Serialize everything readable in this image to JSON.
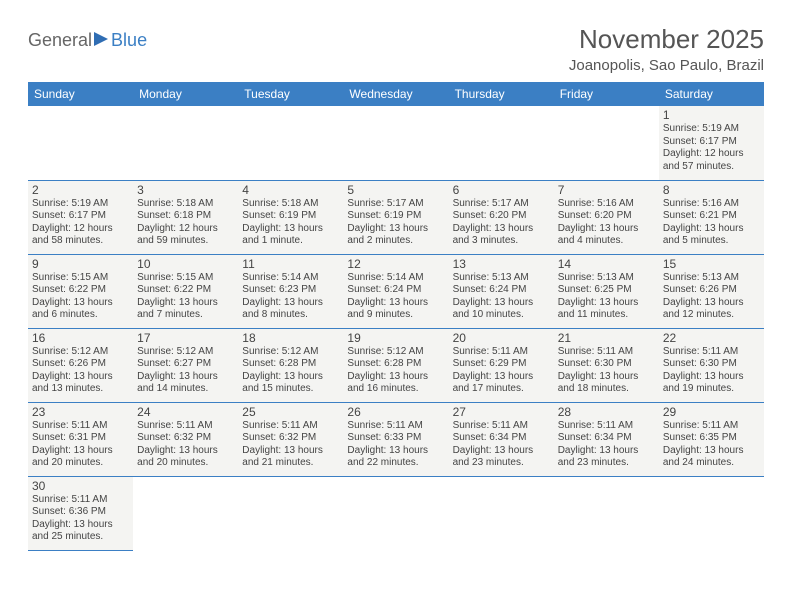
{
  "logo": {
    "part1": "General",
    "part2": "Blue"
  },
  "title": "November 2025",
  "location": "Joanopolis, Sao Paulo, Brazil",
  "colors": {
    "header_bg": "#3b7fc4",
    "header_text": "#ffffff",
    "cell_bg": "#f4f4f2",
    "text": "#444444",
    "rule": "#3b7fc4"
  },
  "day_headers": [
    "Sunday",
    "Monday",
    "Tuesday",
    "Wednesday",
    "Thursday",
    "Friday",
    "Saturday"
  ],
  "weeks": [
    [
      null,
      null,
      null,
      null,
      null,
      null,
      {
        "n": "1",
        "sr": "Sunrise: 5:19 AM",
        "ss": "Sunset: 6:17 PM",
        "d1": "Daylight: 12 hours",
        "d2": "and 57 minutes."
      }
    ],
    [
      {
        "n": "2",
        "sr": "Sunrise: 5:19 AM",
        "ss": "Sunset: 6:17 PM",
        "d1": "Daylight: 12 hours",
        "d2": "and 58 minutes."
      },
      {
        "n": "3",
        "sr": "Sunrise: 5:18 AM",
        "ss": "Sunset: 6:18 PM",
        "d1": "Daylight: 12 hours",
        "d2": "and 59 minutes."
      },
      {
        "n": "4",
        "sr": "Sunrise: 5:18 AM",
        "ss": "Sunset: 6:19 PM",
        "d1": "Daylight: 13 hours",
        "d2": "and 1 minute."
      },
      {
        "n": "5",
        "sr": "Sunrise: 5:17 AM",
        "ss": "Sunset: 6:19 PM",
        "d1": "Daylight: 13 hours",
        "d2": "and 2 minutes."
      },
      {
        "n": "6",
        "sr": "Sunrise: 5:17 AM",
        "ss": "Sunset: 6:20 PM",
        "d1": "Daylight: 13 hours",
        "d2": "and 3 minutes."
      },
      {
        "n": "7",
        "sr": "Sunrise: 5:16 AM",
        "ss": "Sunset: 6:20 PM",
        "d1": "Daylight: 13 hours",
        "d2": "and 4 minutes."
      },
      {
        "n": "8",
        "sr": "Sunrise: 5:16 AM",
        "ss": "Sunset: 6:21 PM",
        "d1": "Daylight: 13 hours",
        "d2": "and 5 minutes."
      }
    ],
    [
      {
        "n": "9",
        "sr": "Sunrise: 5:15 AM",
        "ss": "Sunset: 6:22 PM",
        "d1": "Daylight: 13 hours",
        "d2": "and 6 minutes."
      },
      {
        "n": "10",
        "sr": "Sunrise: 5:15 AM",
        "ss": "Sunset: 6:22 PM",
        "d1": "Daylight: 13 hours",
        "d2": "and 7 minutes."
      },
      {
        "n": "11",
        "sr": "Sunrise: 5:14 AM",
        "ss": "Sunset: 6:23 PM",
        "d1": "Daylight: 13 hours",
        "d2": "and 8 minutes."
      },
      {
        "n": "12",
        "sr": "Sunrise: 5:14 AM",
        "ss": "Sunset: 6:24 PM",
        "d1": "Daylight: 13 hours",
        "d2": "and 9 minutes."
      },
      {
        "n": "13",
        "sr": "Sunrise: 5:13 AM",
        "ss": "Sunset: 6:24 PM",
        "d1": "Daylight: 13 hours",
        "d2": "and 10 minutes."
      },
      {
        "n": "14",
        "sr": "Sunrise: 5:13 AM",
        "ss": "Sunset: 6:25 PM",
        "d1": "Daylight: 13 hours",
        "d2": "and 11 minutes."
      },
      {
        "n": "15",
        "sr": "Sunrise: 5:13 AM",
        "ss": "Sunset: 6:26 PM",
        "d1": "Daylight: 13 hours",
        "d2": "and 12 minutes."
      }
    ],
    [
      {
        "n": "16",
        "sr": "Sunrise: 5:12 AM",
        "ss": "Sunset: 6:26 PM",
        "d1": "Daylight: 13 hours",
        "d2": "and 13 minutes."
      },
      {
        "n": "17",
        "sr": "Sunrise: 5:12 AM",
        "ss": "Sunset: 6:27 PM",
        "d1": "Daylight: 13 hours",
        "d2": "and 14 minutes."
      },
      {
        "n": "18",
        "sr": "Sunrise: 5:12 AM",
        "ss": "Sunset: 6:28 PM",
        "d1": "Daylight: 13 hours",
        "d2": "and 15 minutes."
      },
      {
        "n": "19",
        "sr": "Sunrise: 5:12 AM",
        "ss": "Sunset: 6:28 PM",
        "d1": "Daylight: 13 hours",
        "d2": "and 16 minutes."
      },
      {
        "n": "20",
        "sr": "Sunrise: 5:11 AM",
        "ss": "Sunset: 6:29 PM",
        "d1": "Daylight: 13 hours",
        "d2": "and 17 minutes."
      },
      {
        "n": "21",
        "sr": "Sunrise: 5:11 AM",
        "ss": "Sunset: 6:30 PM",
        "d1": "Daylight: 13 hours",
        "d2": "and 18 minutes."
      },
      {
        "n": "22",
        "sr": "Sunrise: 5:11 AM",
        "ss": "Sunset: 6:30 PM",
        "d1": "Daylight: 13 hours",
        "d2": "and 19 minutes."
      }
    ],
    [
      {
        "n": "23",
        "sr": "Sunrise: 5:11 AM",
        "ss": "Sunset: 6:31 PM",
        "d1": "Daylight: 13 hours",
        "d2": "and 20 minutes."
      },
      {
        "n": "24",
        "sr": "Sunrise: 5:11 AM",
        "ss": "Sunset: 6:32 PM",
        "d1": "Daylight: 13 hours",
        "d2": "and 20 minutes."
      },
      {
        "n": "25",
        "sr": "Sunrise: 5:11 AM",
        "ss": "Sunset: 6:32 PM",
        "d1": "Daylight: 13 hours",
        "d2": "and 21 minutes."
      },
      {
        "n": "26",
        "sr": "Sunrise: 5:11 AM",
        "ss": "Sunset: 6:33 PM",
        "d1": "Daylight: 13 hours",
        "d2": "and 22 minutes."
      },
      {
        "n": "27",
        "sr": "Sunrise: 5:11 AM",
        "ss": "Sunset: 6:34 PM",
        "d1": "Daylight: 13 hours",
        "d2": "and 23 minutes."
      },
      {
        "n": "28",
        "sr": "Sunrise: 5:11 AM",
        "ss": "Sunset: 6:34 PM",
        "d1": "Daylight: 13 hours",
        "d2": "and 23 minutes."
      },
      {
        "n": "29",
        "sr": "Sunrise: 5:11 AM",
        "ss": "Sunset: 6:35 PM",
        "d1": "Daylight: 13 hours",
        "d2": "and 24 minutes."
      }
    ],
    [
      {
        "n": "30",
        "sr": "Sunrise: 5:11 AM",
        "ss": "Sunset: 6:36 PM",
        "d1": "Daylight: 13 hours",
        "d2": "and 25 minutes."
      },
      null,
      null,
      null,
      null,
      null,
      null
    ]
  ]
}
